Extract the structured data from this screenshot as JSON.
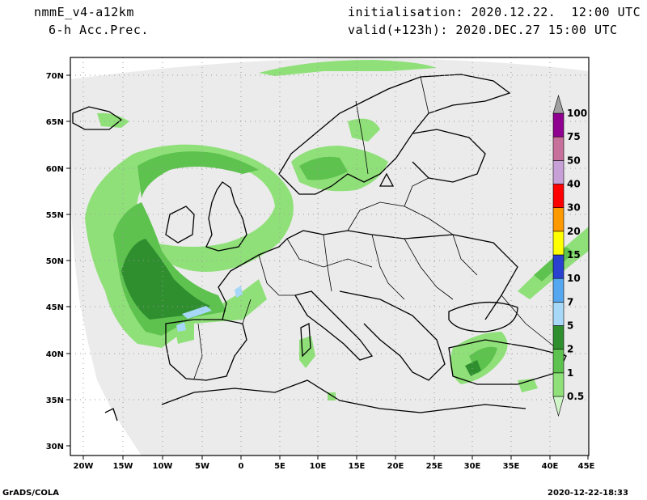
{
  "header": {
    "model": "nmmE_v4-a12km",
    "field": "6-h Acc.Prec.",
    "init": "initialisation: 2020.12.22.  12:00 UTC",
    "valid": "valid(+123h): 2020.DEC.27 15:00 UTC"
  },
  "footer": {
    "left": "GrADS/COLA",
    "right": "2020-12-22-18:33"
  },
  "map": {
    "lon_labels": [
      "20W",
      "15W",
      "10W",
      "5W",
      "0",
      "5E",
      "10E",
      "15E",
      "20E",
      "25E",
      "30E",
      "35E",
      "40E",
      "45E"
    ],
    "lat_labels": [
      "70N",
      "65N",
      "60N",
      "55N",
      "50N",
      "45N",
      "40N",
      "35N",
      "30N"
    ]
  },
  "colorbar": {
    "levels": [
      "0.5",
      "1",
      "2",
      "5",
      "7",
      "10",
      "15",
      "20",
      "30",
      "40",
      "50",
      "75",
      "100"
    ],
    "colors": [
      "#d0f5c8",
      "#90e07a",
      "#5ec24e",
      "#2f8f2f",
      "#a8d8f8",
      "#55a8f0",
      "#2a40d0",
      "#ffff00",
      "#ff9900",
      "#ff0000",
      "#c8a0d8",
      "#c8709c",
      "#900090",
      "#a0a0a0"
    ]
  },
  "colors": {
    "domain": "#ebebeb",
    "land_outline": "#000000",
    "grid": "#9a9a9a"
  }
}
